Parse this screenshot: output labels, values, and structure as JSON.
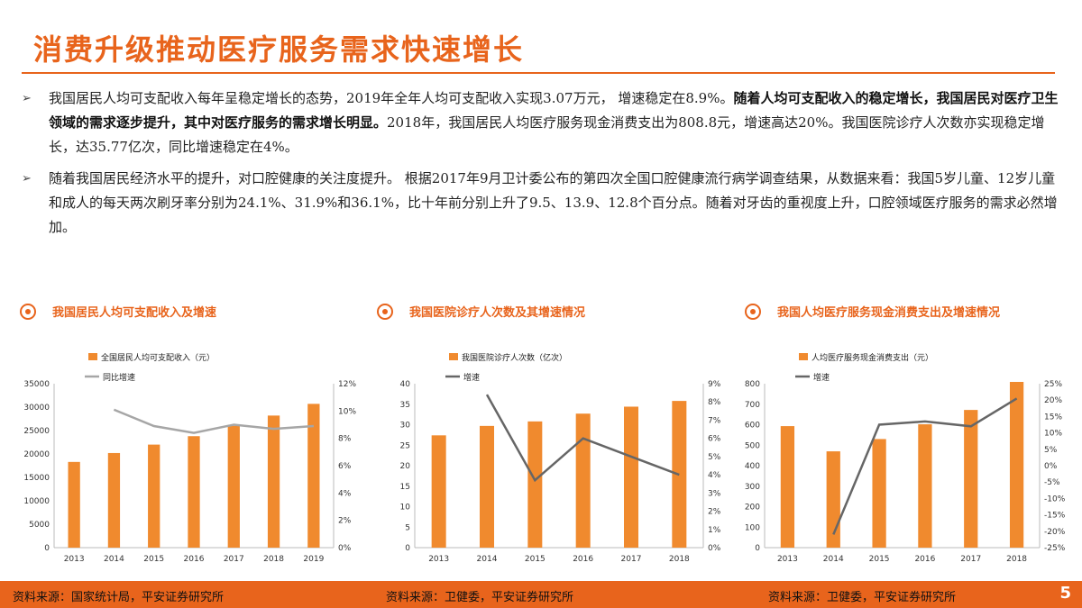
{
  "title": "消费升级推动医疗服务需求快速增长",
  "bullets": [
    {
      "parts": [
        {
          "text": "我国居民人均可支配收入每年呈稳定增长的态势，2019年全年人均可支配收入实现3.07万元， 增速稳定在8.9%。",
          "bold": false
        },
        {
          "text": "随着人均可支配收入的稳定增长，我国居民对医疗卫生领域的需求逐步提升，其中对医疗服务的需求增长明显。",
          "bold": true
        },
        {
          "text": "2018年，我国居民人均医疗服务现金消费支出为808.8元，增速高达20%。我国医院诊疗人次数亦实现稳定增长，达35.77亿次，同比增速稳定在4%。",
          "bold": false
        }
      ]
    },
    {
      "parts": [
        {
          "text": "随着我国居民经济水平的提升，对口腔健康的关注度提升。 根据2017年9月卫计委公布的第四次全国口腔健康流行病学调查结果，从数据来看：我国5岁儿童、12岁儿童和成人的每天两次刷牙率分别为24.1%、31.9%和36.1%，比十年前分别上升了9.5、13.9、12.8个百分点。随着对牙齿的重视度上升，口腔领域医疗服务的需求必然增加。",
          "bold": false
        }
      ]
    }
  ],
  "charts": [
    {
      "heading": "我国居民人均可支配收入及增速",
      "source": "资料来源：国家统计局，平安证券研究所",
      "legend_bar": "全国居民人均可支配收入（元）",
      "legend_line": "同比增速"
    },
    {
      "heading": "我国医院诊疗人次数及其增速情况",
      "source": "资料来源：卫健委，平安证券研究所",
      "legend_bar": "我国医院诊疗人次数（亿次）",
      "legend_line": "增速"
    },
    {
      "heading": "我国人均医疗服务现金消费支出及增速情况",
      "source": "资料来源：卫健委，平安证券研究所",
      "legend_bar": "人均医疗服务现金消费支出（元）",
      "legend_line": "增速"
    }
  ],
  "chart_data": [
    {
      "type": "bar",
      "categories": [
        "2013",
        "2014",
        "2015",
        "2016",
        "2017",
        "2018",
        "2019"
      ],
      "series": [
        {
          "name": "全国居民人均可支配收入（元）",
          "type": "bar",
          "axis": "left",
          "values": [
            18300,
            20200,
            22000,
            23800,
            26000,
            28200,
            30700
          ]
        },
        {
          "name": "同比增速",
          "type": "line",
          "axis": "right",
          "values": [
            null,
            10.1,
            8.9,
            8.4,
            9.0,
            8.7,
            8.9
          ]
        }
      ],
      "ylim": [
        0,
        35000
      ],
      "yticks": [
        0,
        5000,
        10000,
        15000,
        20000,
        25000,
        30000,
        35000
      ],
      "y2lim": [
        0,
        12
      ],
      "y2ticks": [
        "0%",
        "2%",
        "4%",
        "6%",
        "8%",
        "10%",
        "12%"
      ],
      "y2unit": "%"
    },
    {
      "type": "bar",
      "categories": [
        "2013",
        "2014",
        "2015",
        "2016",
        "2017",
        "2018"
      ],
      "series": [
        {
          "name": "我国医院诊疗人次数（亿次）",
          "type": "bar",
          "axis": "left",
          "values": [
            27.4,
            29.7,
            30.8,
            32.7,
            34.4,
            35.8
          ]
        },
        {
          "name": "增速",
          "type": "line",
          "axis": "right",
          "values": [
            null,
            8.4,
            3.7,
            6.0,
            5.0,
            4.0
          ]
        }
      ],
      "ylim": [
        0,
        40
      ],
      "yticks": [
        0,
        5,
        10,
        15,
        20,
        25,
        30,
        35,
        40
      ],
      "y2lim": [
        0,
        9
      ],
      "y2ticks": [
        "0%",
        "1%",
        "2%",
        "3%",
        "4%",
        "5%",
        "6%",
        "7%",
        "8%",
        "9%"
      ],
      "y2unit": "%"
    },
    {
      "type": "bar",
      "categories": [
        "2013",
        "2014",
        "2015",
        "2016",
        "2017",
        "2018"
      ],
      "series": [
        {
          "name": "人均医疗服务现金消费支出（元）",
          "type": "bar",
          "axis": "left",
          "values": [
            593,
            470,
            530,
            602,
            672,
            808.8
          ]
        },
        {
          "name": "增速",
          "type": "line",
          "axis": "right",
          "values": [
            null,
            -21,
            12.5,
            13.5,
            12,
            20.5
          ]
        }
      ],
      "ylim": [
        0,
        800
      ],
      "yticks": [
        0,
        100,
        200,
        300,
        400,
        500,
        600,
        700,
        800
      ],
      "y2lim": [
        -25,
        25
      ],
      "y2ticks": [
        "-25%",
        "-20%",
        "-15%",
        "-10%",
        "-5%",
        "0%",
        "5%",
        "10%",
        "15%",
        "20%",
        "25%"
      ],
      "y2unit": "%"
    }
  ],
  "page_number": "5",
  "colors": {
    "accent": "#e8641c",
    "bar": "#f08a2e",
    "line": "#a6a6a6",
    "line_dark": "#666666"
  }
}
